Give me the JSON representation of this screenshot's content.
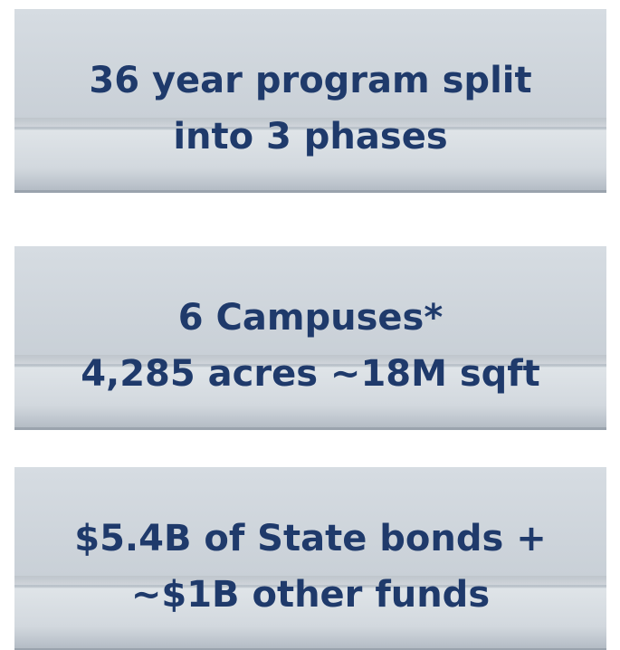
{
  "blocks": [
    {
      "lines": [
        "36 year program split",
        "into 3 phases"
      ]
    },
    {
      "lines": [
        "6 Campuses*",
        "4,285 acres ~18M sqft"
      ]
    },
    {
      "lines": [
        "$5.4B of State bonds +",
        "~$1B other funds"
      ]
    }
  ]
}
